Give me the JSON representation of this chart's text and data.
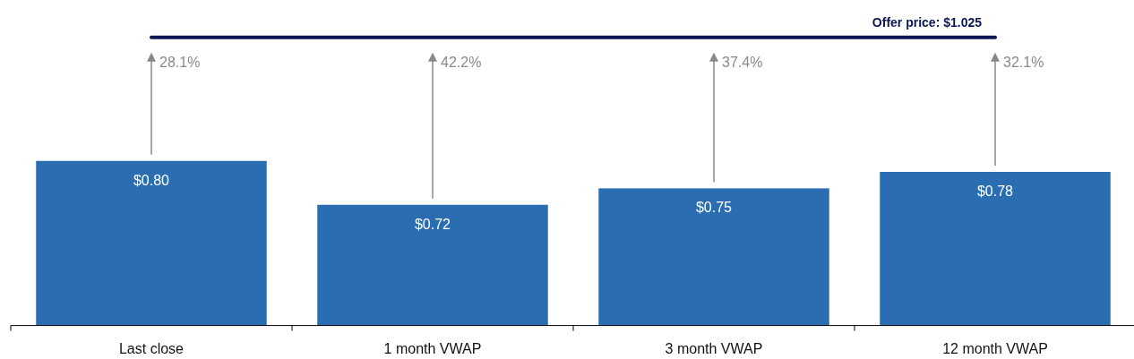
{
  "chart_data": {
    "type": "bar",
    "categories": [
      "Last close",
      "1 month VWAP",
      "3 month VWAP",
      "12 month VWAP"
    ],
    "values": [
      0.8,
      0.72,
      0.75,
      0.78
    ],
    "color": "#2a6db0",
    "value_labels": [
      "$0.80",
      "$0.72",
      "$0.75",
      "$0.78"
    ],
    "ylim": [
      0.5,
      1.09
    ],
    "tick_labels": "x",
    "ref_lines": [
      {
        "axis": "y",
        "value": 1.025,
        "label": "Offer price: $1.025",
        "color": "#0b1655"
      }
    ],
    "annotations": [
      "28.1%",
      "42.2%",
      "37.4%",
      "32.1%"
    ]
  }
}
